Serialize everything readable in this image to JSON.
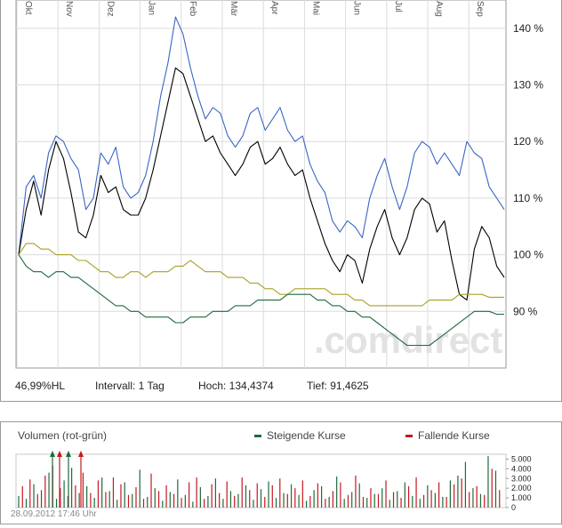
{
  "chart_data": [
    {
      "type": "line",
      "x_labels": [
        "Okt",
        "Nov",
        "Dez",
        "Jan",
        "Feb",
        "Mär",
        "Apr",
        "Mai",
        "Jun",
        "Jul",
        "Aug",
        "Sep"
      ],
      "y_ticks": [
        "140 %",
        "130 %",
        "120 %",
        "110 %",
        "100 %",
        "90 %"
      ],
      "ylim": [
        80,
        145
      ],
      "grid": true,
      "watermark": ".comdirect",
      "series": [
        {
          "color": "#3a66c4",
          "values": [
            100,
            112,
            114,
            110,
            118,
            121,
            120,
            117,
            115,
            108,
            110,
            118,
            116,
            119,
            112,
            110,
            111,
            114,
            120,
            128,
            134,
            142,
            139,
            133,
            128,
            124,
            126,
            125,
            121,
            119,
            121,
            125,
            126,
            122,
            124,
            126,
            122,
            120,
            121,
            116,
            113,
            111,
            106,
            104,
            106,
            105,
            103,
            110,
            114,
            117,
            112,
            108,
            112,
            118,
            120,
            119,
            116,
            118,
            116,
            114,
            120,
            118,
            117,
            112,
            110,
            108
          ]
        },
        {
          "color": "#000000",
          "values": [
            100,
            108,
            113,
            107,
            115,
            120,
            117,
            111,
            104,
            103,
            107,
            114,
            111,
            112,
            108,
            107,
            107,
            110,
            115,
            121,
            127,
            133,
            132,
            128,
            124,
            120,
            121,
            118,
            116,
            114,
            116,
            119,
            120,
            116,
            117,
            119,
            116,
            114,
            115,
            110,
            106,
            102,
            99,
            97,
            100,
            99,
            95,
            101,
            105,
            108,
            103,
            100,
            103,
            108,
            110,
            109,
            104,
            106,
            99,
            93,
            92,
            101,
            105,
            103,
            98,
            96
          ]
        },
        {
          "color": "#a8a020",
          "values": [
            100,
            102,
            102,
            101,
            101,
            100,
            100,
            100,
            99,
            99,
            98,
            97,
            97,
            96,
            96,
            97,
            97,
            96,
            97,
            97,
            97,
            98,
            98,
            99,
            98,
            97,
            97,
            97,
            96,
            96,
            96,
            95,
            95,
            94,
            94,
            93,
            93,
            94,
            94,
            94,
            94,
            94,
            93,
            93,
            93,
            92,
            92,
            91,
            91,
            91,
            91,
            91,
            91,
            91,
            91,
            92,
            92,
            92,
            92,
            93,
            93,
            93,
            93,
            92.5,
            92.5,
            92.5
          ]
        },
        {
          "color": "#1e6a3e",
          "values": [
            100,
            98,
            97,
            97,
            96,
            97,
            97,
            96,
            96,
            95,
            94,
            93,
            92,
            91,
            91,
            90,
            90,
            89,
            89,
            89,
            89,
            88,
            88,
            89,
            89,
            89,
            90,
            90,
            90,
            91,
            91,
            91,
            92,
            92,
            92,
            92,
            93,
            93,
            93,
            93,
            92,
            92,
            91,
            91,
            90,
            90,
            89,
            89,
            88,
            87,
            86,
            85,
            84,
            84,
            84,
            84,
            85,
            86,
            87,
            88,
            89,
            90,
            90,
            90,
            89.5,
            89.5
          ]
        }
      ]
    },
    {
      "type": "bar",
      "title": "Volumen (rot-grün)",
      "y_ticks": [
        "5.000",
        "4.000",
        "3.000",
        "2.000",
        "1.000",
        "0"
      ],
      "ylim": [
        0,
        5500
      ],
      "series": [
        {
          "name": "Steigende Kurse",
          "color": "#1e6a3e",
          "values": [
            1200,
            900,
            2400,
            1800,
            3600,
            900,
            2800,
            4100,
            1500,
            2200,
            1000,
            3100,
            1700,
            800,
            2600,
            1400,
            3900,
            1100,
            2000,
            700,
            1600,
            2900,
            1300,
            600,
            2100,
            1200,
            3000,
            900,
            1700,
            1400,
            2300,
            800,
            1900,
            2700,
            1000,
            1500,
            2400,
            1300,
            700,
            1800,
            2200,
            1100,
            3200,
            900,
            1600,
            2500,
            1000,
            1400,
            2000,
            800,
            1700,
            2600,
            1200,
            900,
            2300,
            1500,
            1100,
            2800,
            3300,
            4700,
            2000,
            1400,
            5300,
            3800
          ]
        },
        {
          "name": "Fallende Kurse",
          "color": "#c8171e",
          "values": [
            2200,
            2900,
            1400,
            3300,
            4300,
            2000,
            1200,
            2300,
            3600,
            1500,
            2800,
            1600,
            3100,
            2400,
            1300,
            2100,
            900,
            3500,
            1700,
            2300,
            1400,
            1000,
            2600,
            3100,
            900,
            2400,
            1500,
            2700,
            1200,
            3100,
            1800,
            2500,
            1100,
            2300,
            3000,
            1400,
            2000,
            2800,
            1200,
            2500,
            900,
            1700,
            2600,
            1300,
            3300,
            1100,
            2000,
            1400,
            2800,
            1600,
            1000,
            2200,
            3100,
            1300,
            1800,
            2600,
            1100,
            2400,
            3000,
            1600,
            2200,
            1300,
            4000,
            1800
          ]
        }
      ]
    }
  ],
  "info": {
    "hl": "46,99%HL",
    "interval": "Intervall: 1 Tag",
    "high": "Hoch: 134,4374",
    "low": "Tief: 91,4625"
  },
  "timestamp": "28.09.2012 17:46 Uhr"
}
